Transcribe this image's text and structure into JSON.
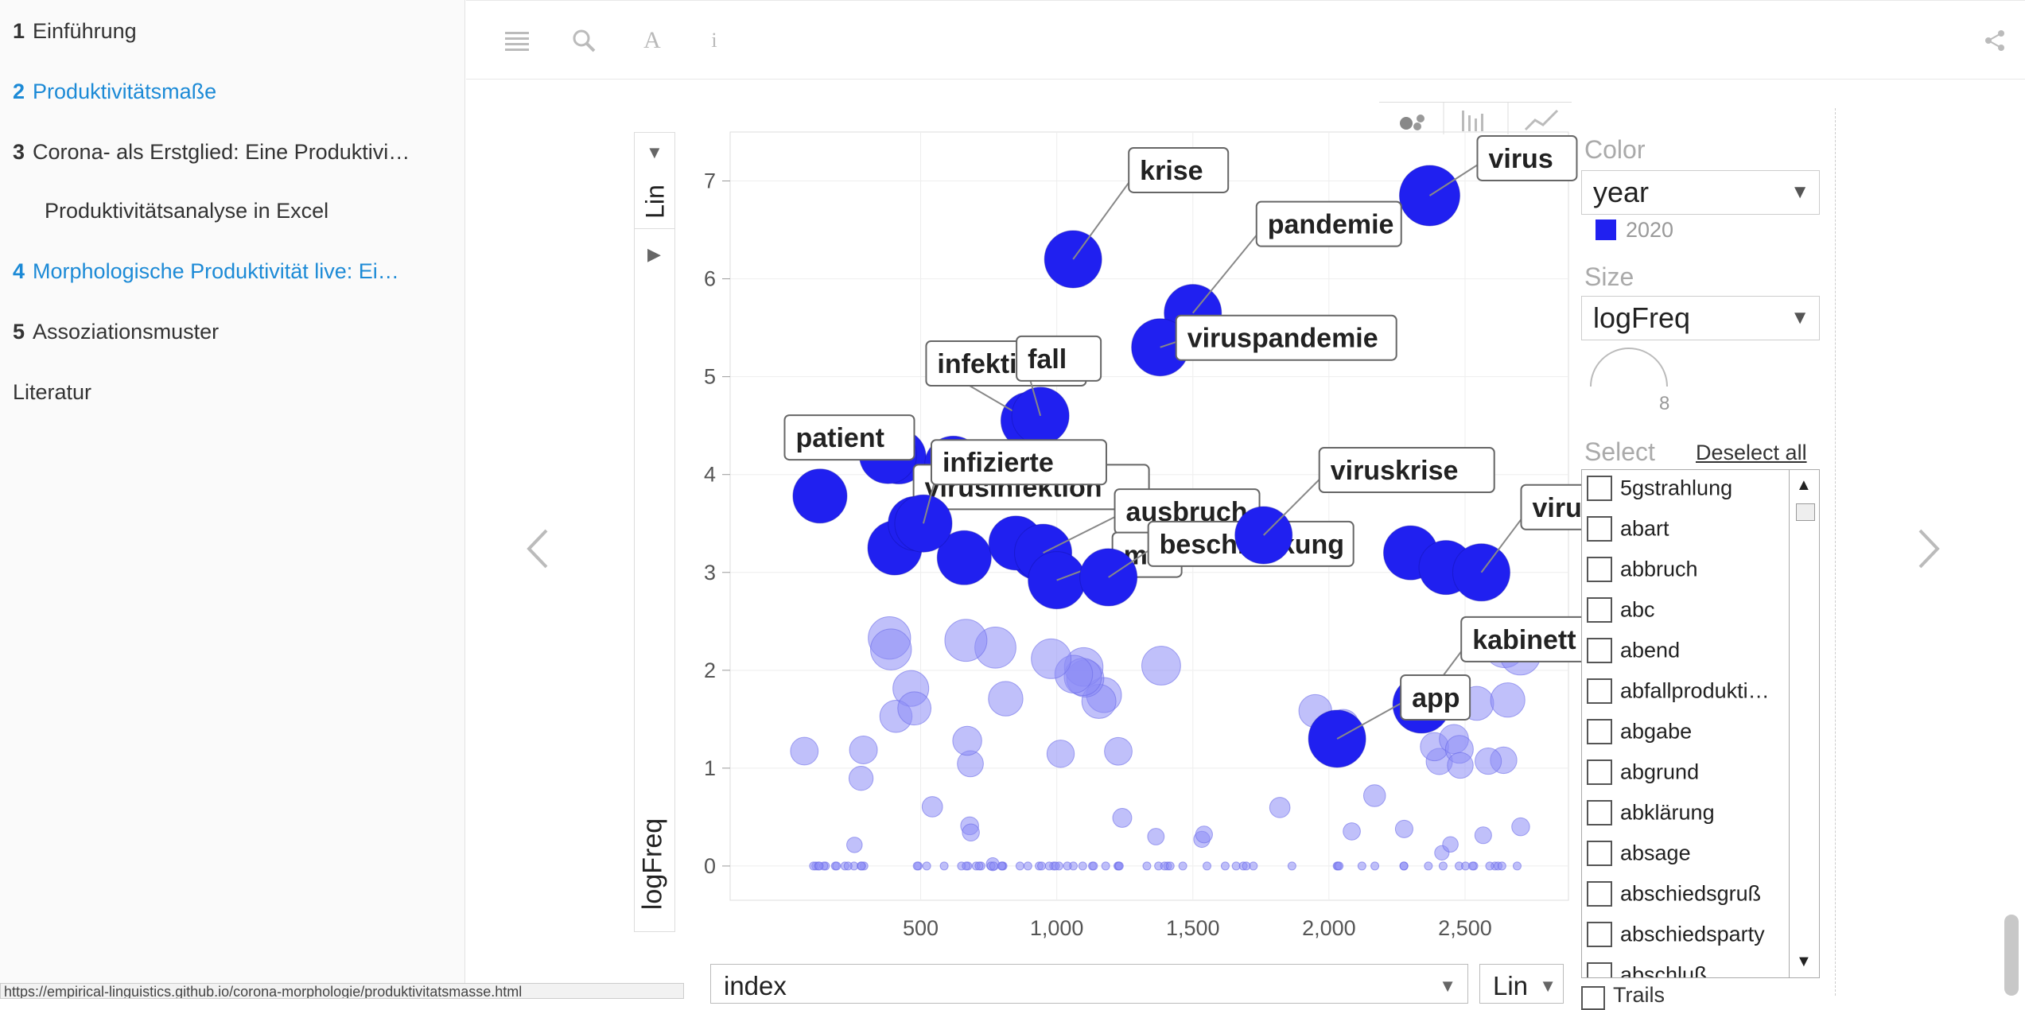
{
  "sidebar": {
    "items": [
      {
        "num": "1",
        "label": "Einführung",
        "active": false,
        "sub": false
      },
      {
        "num": "2",
        "label": "Produktivitätsmaße",
        "active": true,
        "sub": false
      },
      {
        "num": "3",
        "label": "Corona- als Erstglied: Eine Produktivi…",
        "active": false,
        "sub": false
      },
      {
        "num": "",
        "label": "Produktivitätsanalyse in Excel",
        "active": false,
        "sub": true
      },
      {
        "num": "4",
        "label": "Morphologische Produktivität live: Ei…",
        "active": true,
        "sub": false
      },
      {
        "num": "5",
        "label": "Assoziationsmuster",
        "active": false,
        "sub": false
      },
      {
        "num": "",
        "label": "Literatur",
        "active": false,
        "sub": false
      }
    ]
  },
  "toolbar": {
    "icons": [
      "menu-icon",
      "search-icon",
      "font-icon",
      "info-icon",
      "share-icon"
    ]
  },
  "colors": {
    "accent": "#1c8ad6",
    "point": "#2020f0",
    "point_light": "#8c8cf6"
  },
  "chart_data": {
    "type": "scatter",
    "ylabel": "logFreq",
    "xlabel": "index",
    "xscale": "Lin",
    "yscale": "Lin",
    "x_ticks": [
      "500",
      "1,000",
      "1,500",
      "2,000",
      "2,500"
    ],
    "y_ticks": [
      "0",
      "1",
      "2",
      "3",
      "4",
      "5",
      "6",
      "7"
    ],
    "xlim": [
      -200,
      2880
    ],
    "ylim": [
      -0.35,
      7.5
    ],
    "labeled_points": [
      {
        "label": "virus",
        "x": 2370,
        "y": 6.85
      },
      {
        "label": "krise",
        "x": 1060,
        "y": 6.2
      },
      {
        "label": "pandemie",
        "x": 1500,
        "y": 5.65
      },
      {
        "label": "viruspandemie",
        "x": 1380,
        "y": 5.3
      },
      {
        "label": "infektion",
        "x": 900,
        "y": 4.55
      },
      {
        "label": "fall",
        "x": 940,
        "y": 4.6
      },
      {
        "label": "patient",
        "x": 380,
        "y": 4.2
      },
      {
        "label": "virusinfektion",
        "x": 620,
        "y": 4.1
      },
      {
        "label": "infizierte",
        "x": 510,
        "y": 3.5
      },
      {
        "label": "ausbruch",
        "x": 950,
        "y": 3.2
      },
      {
        "label": "ma…",
        "x": 1000,
        "y": 2.92
      },
      {
        "label": "beschränkung",
        "x": 1190,
        "y": 2.95
      },
      {
        "label": "viruskrise",
        "x": 1760,
        "y": 3.38
      },
      {
        "label": "virusepidemie",
        "x": 2560,
        "y": 3.0
      },
      {
        "label": "kabinett",
        "x": 2340,
        "y": 1.65
      },
      {
        "label": "app",
        "x": 2030,
        "y": 1.3
      }
    ],
    "dark_points": [
      {
        "x": 130,
        "y": 3.78
      },
      {
        "x": 405,
        "y": 3.25
      },
      {
        "x": 480,
        "y": 3.5
      },
      {
        "x": 660,
        "y": 3.15
      },
      {
        "x": 930,
        "y": 3.2
      },
      {
        "x": 2300,
        "y": 3.2
      },
      {
        "x": 2430,
        "y": 3.05
      },
      {
        "x": 420,
        "y": 4.18
      },
      {
        "x": 850,
        "y": 3.3
      }
    ],
    "legend": {
      "title": "year",
      "items": [
        "2020"
      ]
    }
  },
  "panel": {
    "color_label": "Color",
    "color_value": "year",
    "legend_item": "2020",
    "size_label": "Size",
    "size_value": "logFreq",
    "size_number": "8",
    "select_label": "Select",
    "deselect_label": "Deselect all",
    "list": [
      "5gstrahlung",
      "abart",
      "abbruch",
      "abc",
      "abend",
      "abfallprodukti…",
      "abgabe",
      "abgrund",
      "abklärung",
      "absage",
      "abschiedsgruß",
      "abschiedsparty",
      "abschluß"
    ]
  },
  "bottom": {
    "x_select": "index",
    "x_scale": "Lin",
    "trails_label": "Trails"
  },
  "status_url": "https://empirical-linguistics.github.io/corona-morphologie/produktivitatsmasse.html"
}
